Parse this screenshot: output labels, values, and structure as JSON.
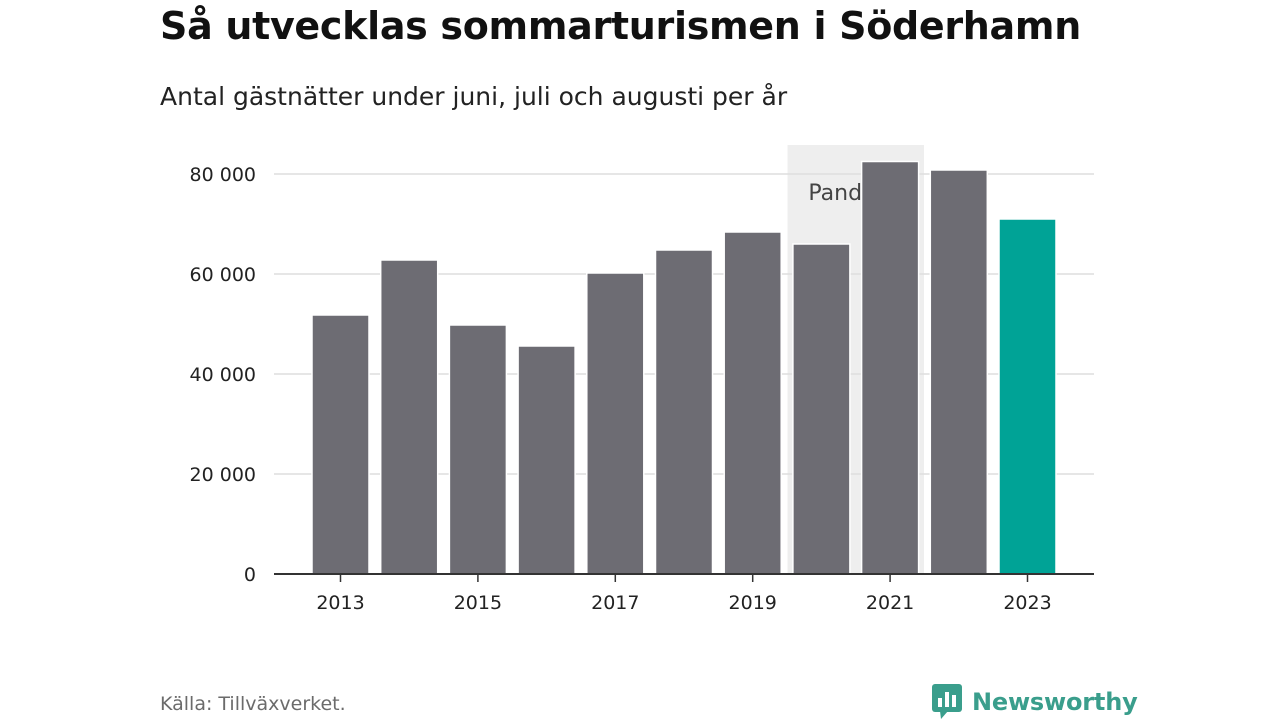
{
  "title": "Så utvecklas sommarturismen i Söderhamn",
  "subtitle": "Antal gästnätter under juni, juli och augusti per år",
  "source": "Källa: Tillväxverket.",
  "brand": {
    "name": "Newsworthy",
    "icon": "newsworthy-logo-icon",
    "color": "#3a9e8c"
  },
  "colors": {
    "bar": "#6d6c73",
    "highlight": "#00a396",
    "pandemic_band": "#eeeeee",
    "grid": "#dddddd",
    "axis": "#333333"
  },
  "chart_data": {
    "type": "bar",
    "categories": [
      "2013",
      "2014",
      "2015",
      "2016",
      "2017",
      "2018",
      "2019",
      "2020",
      "2021",
      "2022",
      "2023"
    ],
    "values": [
      51800,
      62800,
      49800,
      45600,
      60200,
      64800,
      68400,
      66000,
      82500,
      80800,
      71000
    ],
    "highlight_category": "2023",
    "x_tick_labels": [
      "2013",
      "2015",
      "2017",
      "2019",
      "2021",
      "2023"
    ],
    "y_ticks": [
      0,
      20000,
      40000,
      60000,
      80000
    ],
    "y_tick_labels": [
      "0",
      "20 000",
      "40 000",
      "60 000",
      "80 000"
    ],
    "ylim": [
      0,
      90000
    ],
    "grid": true,
    "annotation": {
      "label": "Pandemi",
      "from": "2020",
      "to": "2021"
    },
    "xlabel": "",
    "ylabel": ""
  }
}
